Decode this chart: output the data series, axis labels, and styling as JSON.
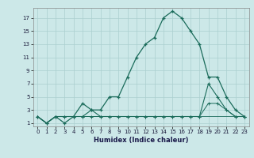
{
  "xlabel": "Humidex (Indice chaleur)",
  "ylabel": "",
  "bg_color": "#cce8e8",
  "grid_color": "#aacfcf",
  "line_color": "#1a6b5a",
  "x_ticks": [
    0,
    1,
    2,
    3,
    4,
    5,
    6,
    7,
    8,
    9,
    10,
    11,
    12,
    13,
    14,
    15,
    16,
    17,
    18,
    19,
    20,
    21,
    22,
    23
  ],
  "y_ticks": [
    1,
    3,
    5,
    7,
    9,
    11,
    13,
    15,
    17
  ],
  "xlim": [
    -0.5,
    23.5
  ],
  "ylim": [
    0.5,
    18.5
  ],
  "line1_x": [
    0,
    1,
    2,
    3,
    4,
    5,
    6,
    7,
    8,
    9,
    10,
    11,
    12,
    13,
    14,
    15,
    16,
    17,
    18,
    19,
    20,
    21,
    22,
    23
  ],
  "line1_y": [
    2,
    1,
    2,
    1,
    2,
    4,
    3,
    3,
    5,
    5,
    8,
    11,
    13,
    14,
    17,
    18,
    17,
    15,
    13,
    8,
    8,
    5,
    3,
    2
  ],
  "line2_x": [
    0,
    1,
    2,
    3,
    4,
    5,
    6,
    7,
    8,
    9,
    10,
    11,
    12,
    13,
    14,
    15,
    16,
    17,
    18,
    19,
    20,
    21,
    22,
    23
  ],
  "line2_y": [
    2,
    1,
    2,
    2,
    2,
    2,
    3,
    2,
    2,
    2,
    2,
    2,
    2,
    2,
    2,
    2,
    2,
    2,
    2,
    7,
    5,
    3,
    2,
    2
  ],
  "line3_x": [
    0,
    1,
    2,
    3,
    4,
    5,
    6,
    7,
    8,
    9,
    10,
    11,
    12,
    13,
    14,
    15,
    16,
    17,
    18,
    19,
    20,
    21,
    22,
    23
  ],
  "line3_y": [
    2,
    1,
    2,
    2,
    2,
    2,
    2,
    2,
    2,
    2,
    2,
    2,
    2,
    2,
    2,
    2,
    2,
    2,
    2,
    4,
    4,
    3,
    2,
    2
  ],
  "line4_x": [
    0,
    1,
    2,
    3,
    4,
    5,
    6,
    7,
    8,
    9,
    10,
    11,
    12,
    13,
    14,
    15,
    16,
    17,
    18,
    19,
    20,
    21,
    22,
    23
  ],
  "line4_y": [
    2,
    1,
    2,
    2,
    2,
    2,
    2,
    2,
    2,
    2,
    2,
    2,
    2,
    2,
    2,
    2,
    2,
    2,
    2,
    2,
    2,
    2,
    2,
    2
  ]
}
